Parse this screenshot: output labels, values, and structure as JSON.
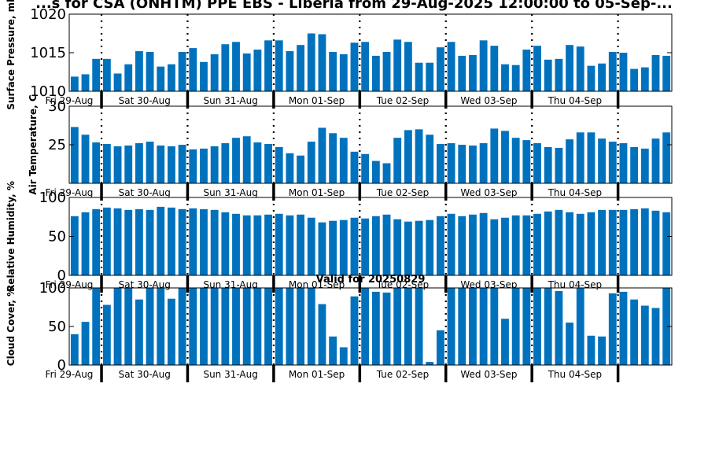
{
  "figure": {
    "title": "...s for CSA (ONHTM) PPE EBS - Liberia from 29-Aug-2025 12:00:00 to 05-Sep-...",
    "valid_label": "Valid for 20250829"
  },
  "colors": {
    "bar": "#0072bd",
    "axis": "#000000",
    "background": "#ffffff"
  },
  "chart_data": [
    {
      "type": "bar",
      "ylabel": "Surface Pressure, mb",
      "ylim": [
        1010,
        1020
      ],
      "yticks": [
        1010,
        1015,
        1020
      ],
      "day_labels": [
        "Fri 29-Aug",
        "Sat 30-Aug",
        "Sun 31-Aug",
        "Mon 01-Sep",
        "Tue 02-Sep",
        "Wed 03-Sep",
        "Thu 04-Sep"
      ],
      "values": [
        1011.9,
        1012.2,
        1014.2,
        1014.2,
        1012.3,
        1013.5,
        1015.2,
        1015.1,
        1013.2,
        1013.5,
        1015.1,
        1015.6,
        1013.8,
        1014.8,
        1016.1,
        1016.4,
        1014.9,
        1015.4,
        1016.6,
        1016.6,
        1015.2,
        1016.0,
        1017.5,
        1017.4,
        1015.1,
        1014.8,
        1016.3,
        1016.4,
        1014.6,
        1015.1,
        1016.7,
        1016.4,
        1013.7,
        1013.7,
        1015.7,
        1016.4,
        1014.6,
        1014.7,
        1016.6,
        1015.9,
        1013.5,
        1013.4,
        1015.4,
        1015.9,
        1014.1,
        1014.2,
        1016.0,
        1015.8,
        1013.3,
        1013.6,
        1015.1,
        1015.0,
        1012.9,
        1013.1,
        1014.7,
        1014.6
      ]
    },
    {
      "type": "bar",
      "ylabel": "Air Temperature, C",
      "ylim": [
        20,
        30
      ],
      "yticks": [
        25,
        30
      ],
      "day_labels": [
        "Fri 29-Aug",
        "Sat 30-Aug",
        "Sun 31-Aug",
        "Mon 01-Sep",
        "Tue 02-Sep",
        "Wed 03-Sep",
        "Thu 04-Sep"
      ],
      "values": [
        27.3,
        26.3,
        25.3,
        25.1,
        24.8,
        24.9,
        25.2,
        25.4,
        24.9,
        24.8,
        25.0,
        24.4,
        24.5,
        24.8,
        25.2,
        25.9,
        26.1,
        25.3,
        25.1,
        24.7,
        23.9,
        23.6,
        25.4,
        27.2,
        26.5,
        25.9,
        24.1,
        23.8,
        22.9,
        22.6,
        25.9,
        26.9,
        27.0,
        26.3,
        25.1,
        25.2,
        25.0,
        24.9,
        25.2,
        27.1,
        26.8,
        25.9,
        25.6,
        25.2,
        24.7,
        24.6,
        25.7,
        26.6,
        26.6,
        25.8,
        25.4,
        25.2,
        24.7,
        24.5,
        25.8,
        26.6
      ]
    },
    {
      "type": "bar",
      "ylabel": "Relative Humidity, %",
      "ylim": [
        0,
        100
      ],
      "yticks": [
        0,
        50,
        100
      ],
      "day_labels": [
        "Fri 29-Aug",
        "Sat 30-Aug",
        "Sun 31-Aug",
        "Mon 01-Sep",
        "Tue 02-Sep",
        "Wed 03-Sep",
        "Thu 04-Sep"
      ],
      "values": [
        76,
        81,
        85,
        87,
        86,
        84,
        85,
        84,
        88,
        87,
        85,
        86,
        85,
        84,
        81,
        79,
        77,
        77,
        78,
        79,
        77,
        78,
        74,
        68,
        70,
        71,
        74,
        73,
        76,
        78,
        72,
        69,
        70,
        71,
        76,
        79,
        76,
        78,
        80,
        72,
        74,
        77,
        77,
        79,
        82,
        84,
        81,
        79,
        81,
        84,
        84,
        84,
        85,
        86,
        83,
        81
      ]
    },
    {
      "type": "bar",
      "ylabel": "Cloud Cover, %",
      "ylim": [
        0,
        100
      ],
      "yticks": [
        0,
        50,
        100
      ],
      "day_labels": [
        "Fri 29-Aug",
        "Sat 30-Aug",
        "Sun 31-Aug",
        "Mon 01-Sep",
        "Tue 02-Sep",
        "Wed 03-Sep",
        "Thu 04-Sep"
      ],
      "values": [
        40,
        56,
        100,
        78,
        100,
        100,
        85,
        100,
        100,
        86,
        100,
        100,
        100,
        100,
        100,
        100,
        100,
        100,
        100,
        100,
        100,
        100,
        100,
        79,
        37,
        23,
        89,
        100,
        95,
        94,
        100,
        100,
        100,
        4,
        45,
        100,
        100,
        100,
        100,
        100,
        60,
        100,
        100,
        100,
        100,
        96,
        55,
        100,
        38,
        37,
        93,
        95,
        85,
        77,
        74,
        100
      ]
    }
  ]
}
